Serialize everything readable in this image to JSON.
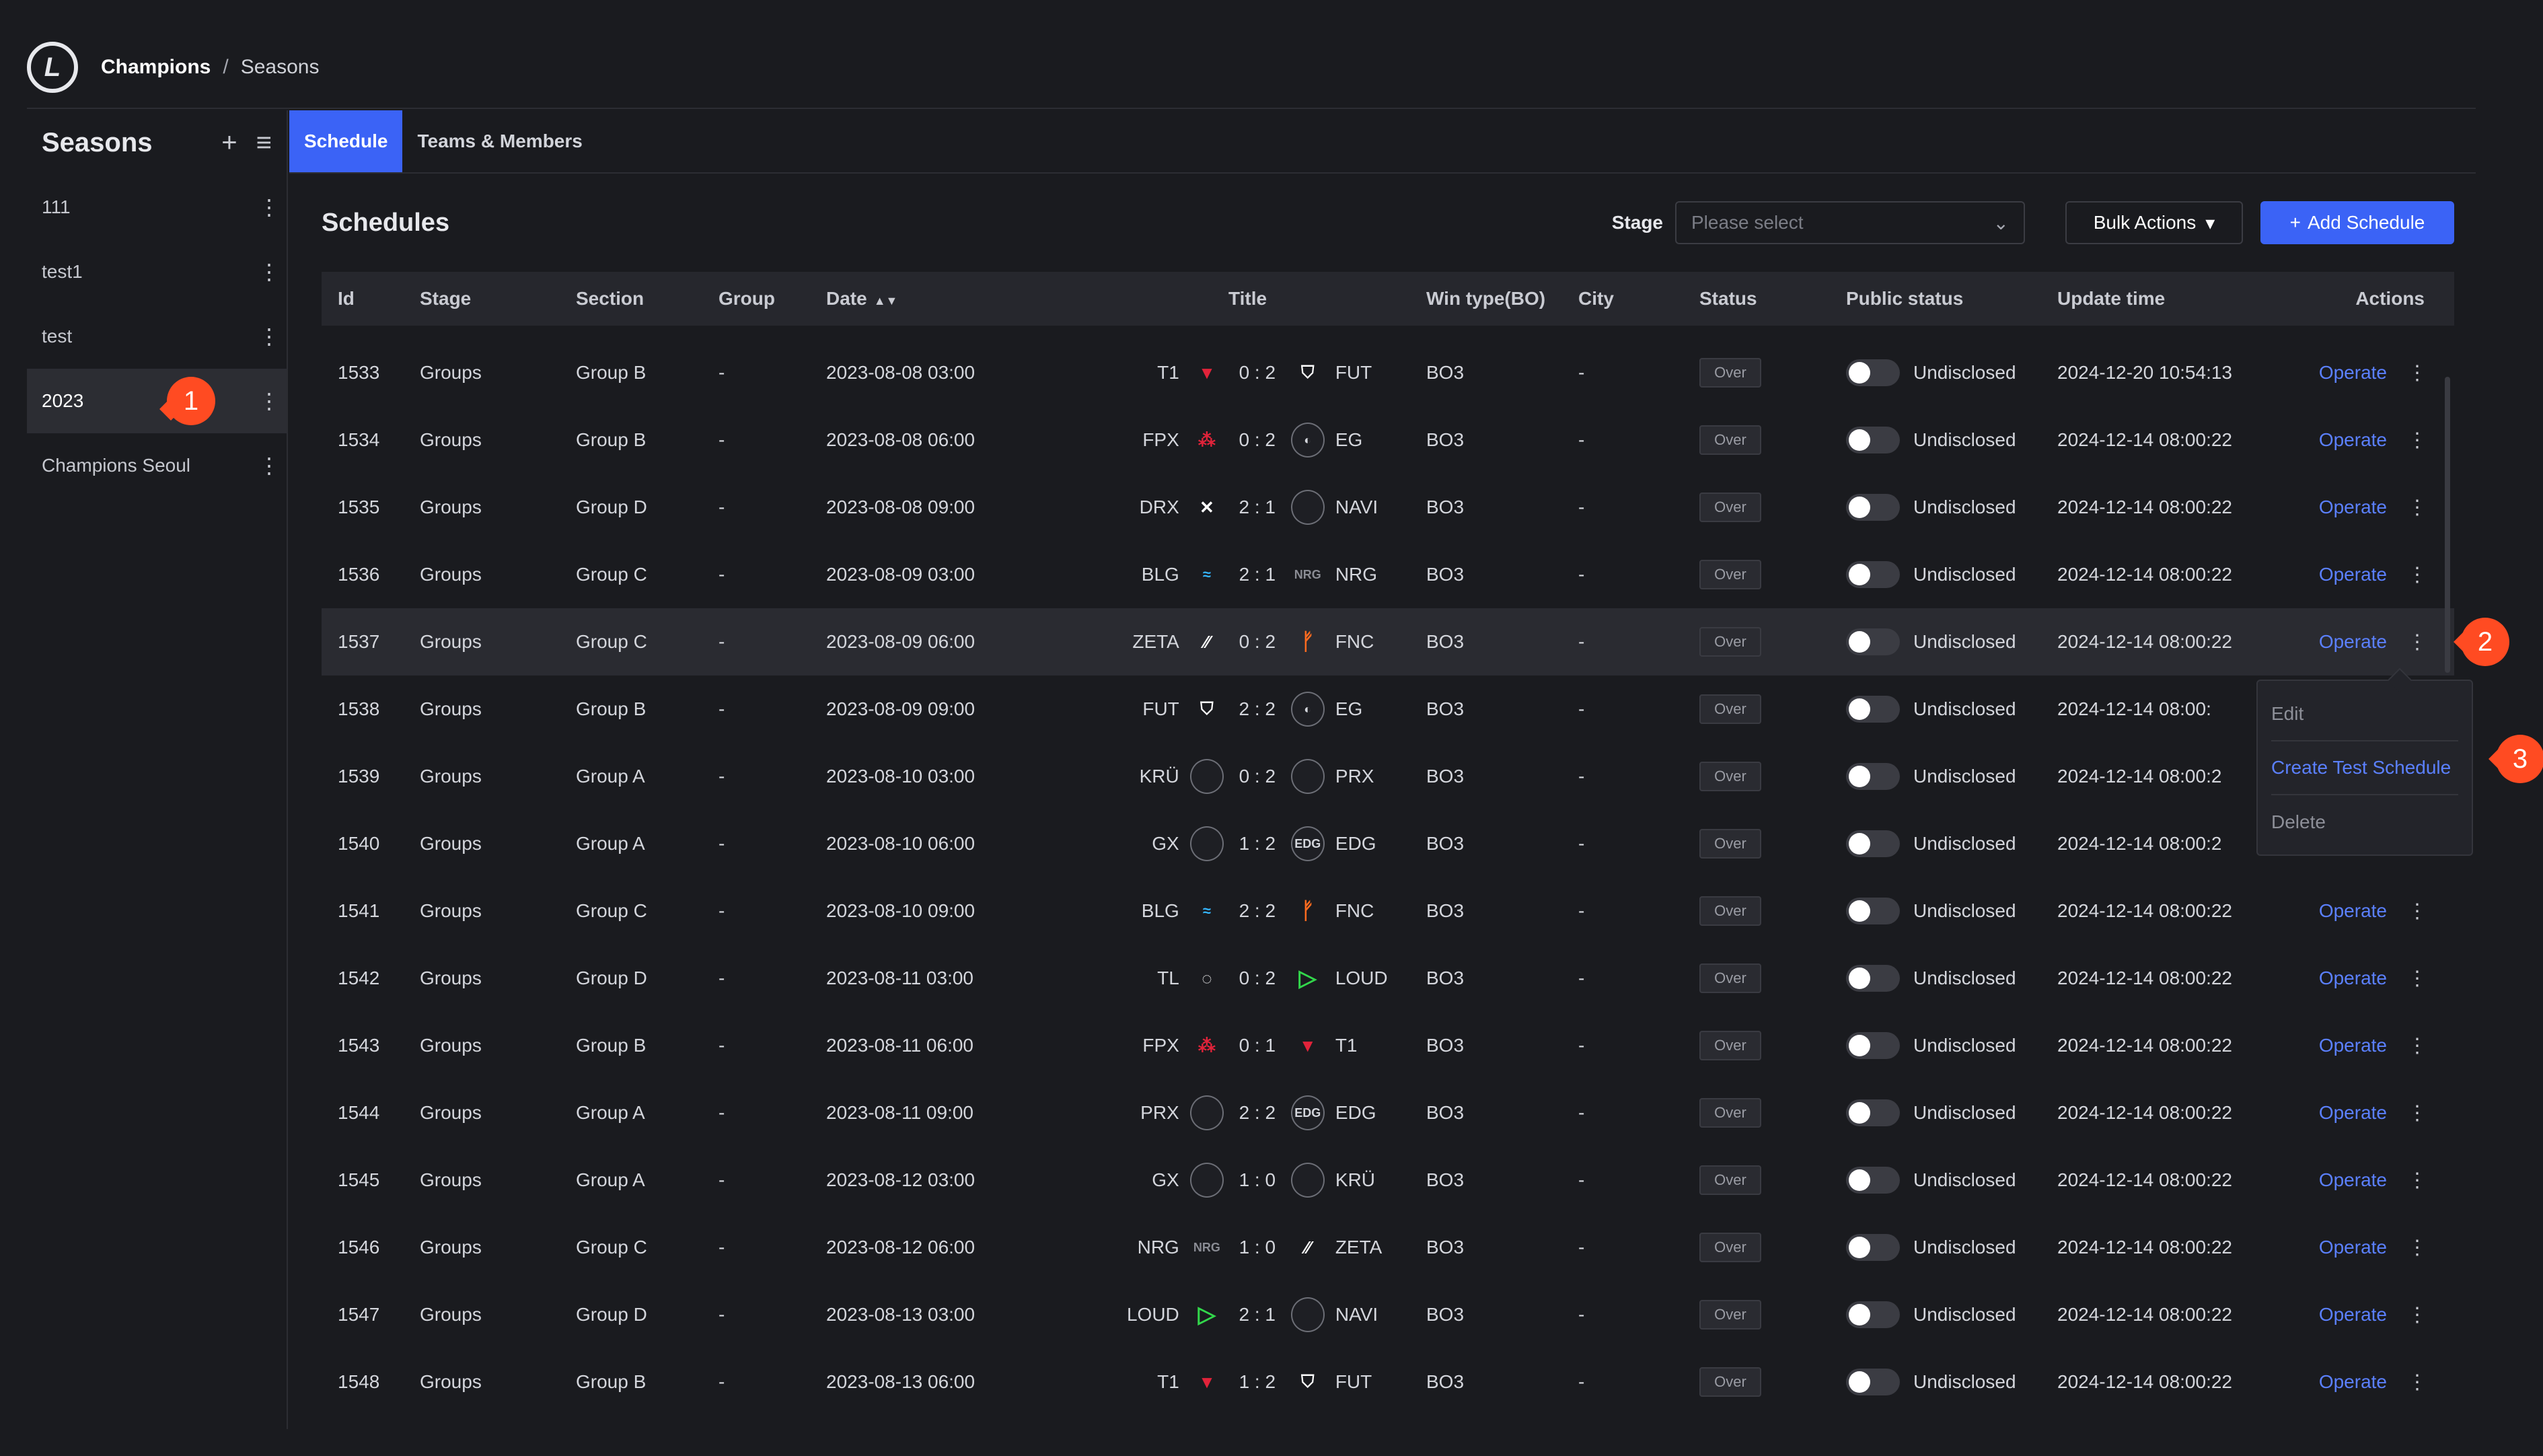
{
  "breadcrumb": {
    "home": "Champions",
    "sep": "/",
    "current": "Seasons"
  },
  "sidebar": {
    "title": "Seasons",
    "items": [
      {
        "label": "111"
      },
      {
        "label": "test1"
      },
      {
        "label": "test"
      },
      {
        "label": "2023",
        "selected": true
      },
      {
        "label": "Champions Seoul"
      }
    ]
  },
  "tabs": [
    {
      "label": "Schedule",
      "active": true
    },
    {
      "label": "Teams & Members"
    }
  ],
  "toolbar": {
    "title": "Schedules",
    "stage_label": "Stage",
    "stage_placeholder": "Please select",
    "bulk_label": "Bulk Actions",
    "add_label": "Add Schedule"
  },
  "columns": [
    "Id",
    "Stage",
    "Section",
    "Group",
    "Date",
    "Title",
    "Win type(BO)",
    "City",
    "Status",
    "Public status",
    "Update time",
    "Actions"
  ],
  "rows": [
    {
      "id": "1533",
      "stage": "Groups",
      "section": "Group B",
      "group": "-",
      "date": "2023-08-08 03:00",
      "home": "T1",
      "home_icon": "t1",
      "score": "0 : 2",
      "away": "FUT",
      "away_icon": "fut",
      "bo": "BO3",
      "city": "-",
      "status": "Over",
      "public": "Undisclosed",
      "updated": "2024-12-20 10:54:13",
      "action": "Operate"
    },
    {
      "id": "1534",
      "stage": "Groups",
      "section": "Group B",
      "group": "-",
      "date": "2023-08-08 06:00",
      "home": "FPX",
      "home_icon": "fpx",
      "score": "0 : 2",
      "away": "EG",
      "away_icon": "eg",
      "bo": "BO3",
      "city": "-",
      "status": "Over",
      "public": "Undisclosed",
      "updated": "2024-12-14 08:00:22",
      "action": "Operate"
    },
    {
      "id": "1535",
      "stage": "Groups",
      "section": "Group D",
      "group": "-",
      "date": "2023-08-08 09:00",
      "home": "DRX",
      "home_icon": "drx",
      "score": "2 : 1",
      "away": "NAVI",
      "away_icon": "blank",
      "bo": "BO3",
      "city": "-",
      "status": "Over",
      "public": "Undisclosed",
      "updated": "2024-12-14 08:00:22",
      "action": "Operate"
    },
    {
      "id": "1536",
      "stage": "Groups",
      "section": "Group C",
      "group": "-",
      "date": "2023-08-09 03:00",
      "home": "BLG",
      "home_icon": "blg",
      "score": "2 : 1",
      "away": "NRG",
      "away_icon": "nrg",
      "bo": "BO3",
      "city": "-",
      "status": "Over",
      "public": "Undisclosed",
      "updated": "2024-12-14 08:00:22",
      "action": "Operate"
    },
    {
      "id": "1537",
      "stage": "Groups",
      "section": "Group C",
      "group": "-",
      "date": "2023-08-09 06:00",
      "home": "ZETA",
      "home_icon": "zeta",
      "score": "0 : 2",
      "away": "FNC",
      "away_icon": "fnc",
      "bo": "BO3",
      "city": "-",
      "status": "Over",
      "public": "Undisclosed",
      "updated": "2024-12-14 08:00:22",
      "action": "Operate",
      "selected": true
    },
    {
      "id": "1538",
      "stage": "Groups",
      "section": "Group B",
      "group": "-",
      "date": "2023-08-09 09:00",
      "home": "FUT",
      "home_icon": "fut",
      "score": "2 : 2",
      "away": "EG",
      "away_icon": "eg",
      "bo": "BO3",
      "city": "-",
      "status": "Over",
      "public": "Undisclosed",
      "updated": "2024-12-14 08:00:",
      "action": "Operate"
    },
    {
      "id": "1539",
      "stage": "Groups",
      "section": "Group A",
      "group": "-",
      "date": "2023-08-10 03:00",
      "home": "KRÜ",
      "home_icon": "blank",
      "score": "0 : 2",
      "away": "PRX",
      "away_icon": "blank",
      "bo": "BO3",
      "city": "-",
      "status": "Over",
      "public": "Undisclosed",
      "updated": "2024-12-14 08:00:2",
      "action": "Operate"
    },
    {
      "id": "1540",
      "stage": "Groups",
      "section": "Group A",
      "group": "-",
      "date": "2023-08-10 06:00",
      "home": "GX",
      "home_icon": "blank",
      "score": "1 : 2",
      "away": "EDG",
      "away_icon": "edg",
      "bo": "BO3",
      "city": "-",
      "status": "Over",
      "public": "Undisclosed",
      "updated": "2024-12-14 08:00:2",
      "action": "Operate"
    },
    {
      "id": "1541",
      "stage": "Groups",
      "section": "Group C",
      "group": "-",
      "date": "2023-08-10 09:00",
      "home": "BLG",
      "home_icon": "blg",
      "score": "2 : 2",
      "away": "FNC",
      "away_icon": "fnc",
      "bo": "BO3",
      "city": "-",
      "status": "Over",
      "public": "Undisclosed",
      "updated": "2024-12-14 08:00:22",
      "action": "Operate"
    },
    {
      "id": "1542",
      "stage": "Groups",
      "section": "Group D",
      "group": "-",
      "date": "2023-08-11 03:00",
      "home": "TL",
      "home_icon": "tl",
      "score": "0 : 2",
      "away": "LOUD",
      "away_icon": "loud",
      "bo": "BO3",
      "city": "-",
      "status": "Over",
      "public": "Undisclosed",
      "updated": "2024-12-14 08:00:22",
      "action": "Operate"
    },
    {
      "id": "1543",
      "stage": "Groups",
      "section": "Group B",
      "group": "-",
      "date": "2023-08-11 06:00",
      "home": "FPX",
      "home_icon": "fpx",
      "score": "0 : 1",
      "away": "T1",
      "away_icon": "t1",
      "bo": "BO3",
      "city": "-",
      "status": "Over",
      "public": "Undisclosed",
      "updated": "2024-12-14 08:00:22",
      "action": "Operate"
    },
    {
      "id": "1544",
      "stage": "Groups",
      "section": "Group A",
      "group": "-",
      "date": "2023-08-11 09:00",
      "home": "PRX",
      "home_icon": "blank",
      "score": "2 : 2",
      "away": "EDG",
      "away_icon": "edg",
      "bo": "BO3",
      "city": "-",
      "status": "Over",
      "public": "Undisclosed",
      "updated": "2024-12-14 08:00:22",
      "action": "Operate"
    },
    {
      "id": "1545",
      "stage": "Groups",
      "section": "Group A",
      "group": "-",
      "date": "2023-08-12 03:00",
      "home": "GX",
      "home_icon": "blank",
      "score": "1 : 0",
      "away": "KRÜ",
      "away_icon": "blank",
      "bo": "BO3",
      "city": "-",
      "status": "Over",
      "public": "Undisclosed",
      "updated": "2024-12-14 08:00:22",
      "action": "Operate"
    },
    {
      "id": "1546",
      "stage": "Groups",
      "section": "Group C",
      "group": "-",
      "date": "2023-08-12 06:00",
      "home": "NRG",
      "home_icon": "nrg",
      "score": "1 : 0",
      "away": "ZETA",
      "away_icon": "zeta",
      "bo": "BO3",
      "city": "-",
      "status": "Over",
      "public": "Undisclosed",
      "updated": "2024-12-14 08:00:22",
      "action": "Operate"
    },
    {
      "id": "1547",
      "stage": "Groups",
      "section": "Group D",
      "group": "-",
      "date": "2023-08-13 03:00",
      "home": "LOUD",
      "home_icon": "loud",
      "score": "2 : 1",
      "away": "NAVI",
      "away_icon": "blank",
      "bo": "BO3",
      "city": "-",
      "status": "Over",
      "public": "Undisclosed",
      "updated": "2024-12-14 08:00:22",
      "action": "Operate"
    },
    {
      "id": "1548",
      "stage": "Groups",
      "section": "Group B",
      "group": "-",
      "date": "2023-08-13 06:00",
      "home": "T1",
      "home_icon": "t1",
      "score": "1 : 2",
      "away": "FUT",
      "away_icon": "fut",
      "bo": "BO3",
      "city": "-",
      "status": "Over",
      "public": "Undisclosed",
      "updated": "2024-12-14 08:00:22",
      "action": "Operate"
    }
  ],
  "menu": {
    "items": [
      "Edit",
      "Create Test Schedule",
      "Delete"
    ],
    "highlight": 1
  },
  "annotations": [
    "1",
    "2",
    "3"
  ]
}
